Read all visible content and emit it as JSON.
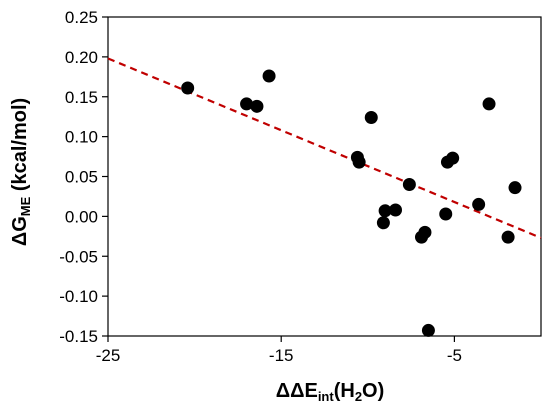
{
  "chart_data": {
    "type": "scatter",
    "title": "",
    "xlabel": {
      "prefix": "ΔΔE",
      "subscript": "int",
      "suffix_open": "(H",
      "suffix_sub": "2",
      "suffix_close": "O)"
    },
    "ylabel": {
      "prefix": "ΔG",
      "subscript": "ME",
      "suffix": " (kcal/mol)"
    },
    "xlim": [
      -25,
      0
    ],
    "ylim": [
      -0.15,
      0.25
    ],
    "x_ticks": [
      -25,
      -15,
      -5
    ],
    "x_tick_labels": [
      "-25",
      "-15",
      "-5"
    ],
    "y_ticks": [
      -0.15,
      -0.1,
      -0.05,
      0.0,
      0.05,
      0.1,
      0.15,
      0.2,
      0.25
    ],
    "y_tick_labels": [
      "-0.15",
      "-0.10",
      "-0.05",
      "0.00",
      "0.05",
      "0.10",
      "0.15",
      "0.20",
      "0.25"
    ],
    "grid": false,
    "legend": "none",
    "points": [
      {
        "x": -20.4,
        "y": 0.161
      },
      {
        "x": -17.0,
        "y": 0.141
      },
      {
        "x": -16.4,
        "y": 0.138
      },
      {
        "x": -15.7,
        "y": 0.176
      },
      {
        "x": -10.6,
        "y": 0.074
      },
      {
        "x": -10.5,
        "y": 0.068
      },
      {
        "x": -9.8,
        "y": 0.124
      },
      {
        "x": -9.1,
        "y": -0.008
      },
      {
        "x": -9.0,
        "y": 0.007
      },
      {
        "x": -8.4,
        "y": 0.008
      },
      {
        "x": -7.6,
        "y": 0.04
      },
      {
        "x": -6.9,
        "y": -0.026
      },
      {
        "x": -6.7,
        "y": -0.02
      },
      {
        "x": -6.5,
        "y": -0.143
      },
      {
        "x": -5.5,
        "y": 0.003
      },
      {
        "x": -5.4,
        "y": 0.068
      },
      {
        "x": -5.1,
        "y": 0.073
      },
      {
        "x": -3.6,
        "y": 0.015
      },
      {
        "x": -3.0,
        "y": 0.141
      },
      {
        "x": -1.9,
        "y": -0.026
      },
      {
        "x": -1.5,
        "y": 0.036
      }
    ],
    "trendline": {
      "style": "dashed",
      "color": "#c00000",
      "from": {
        "x": -25,
        "y": 0.198
      },
      "to": {
        "x": 0,
        "y": -0.027
      }
    },
    "marker_color": "#000000"
  }
}
